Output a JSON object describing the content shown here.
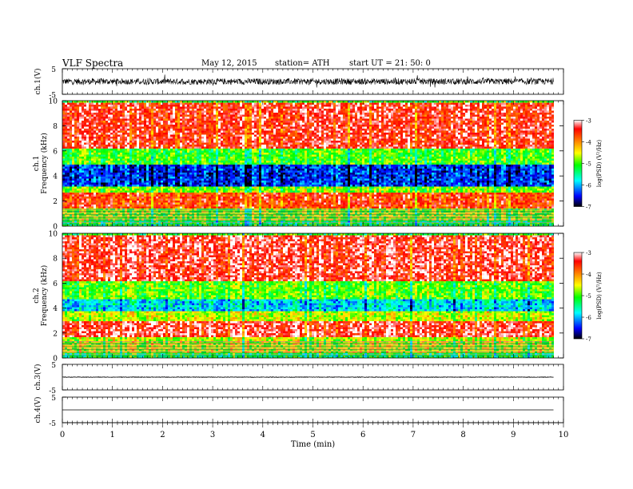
{
  "header": {
    "title": "VLF Spectra",
    "date": "May 12, 2015",
    "station": "station= ATH",
    "start": "start  UT =   21: 50: 0"
  },
  "colors": {
    "spectrogram_scale": [
      "#000000",
      "#0000ff",
      "#00ffff",
      "#00ff00",
      "#ffff00",
      "#ff8000",
      "#ff0000",
      "#ffffff"
    ]
  },
  "chart_data": [
    {
      "type": "line",
      "panel": "ch1-waveform",
      "ylabel": "ch.1(V)",
      "ylim": [
        -5,
        5
      ],
      "yticks": [
        "5",
        "-5"
      ],
      "baseline": 0,
      "amplitude": 1.2
    },
    {
      "type": "heatmap",
      "panel": "ch1-spectrogram",
      "ylabel_channel": "ch.1",
      "ylabel": "Frequency (kHz)",
      "ylim": [
        0,
        10
      ],
      "yticks": [
        "0",
        "2",
        "4",
        "6",
        "8",
        "10"
      ],
      "colorbar": {
        "label": "log(PSD) (V²/Hz)",
        "ticks": [
          "-3",
          "-4",
          "-5",
          "-6",
          "-7"
        ],
        "range": [
          -7,
          -3
        ]
      },
      "bands": [
        {
          "fmin": 0.0,
          "fmax": 0.5,
          "level": -5.2
        },
        {
          "fmin": 0.5,
          "fmax": 1.5,
          "level": -4.8
        },
        {
          "fmin": 1.5,
          "fmax": 2.8,
          "level": -3.6
        },
        {
          "fmin": 2.8,
          "fmax": 3.3,
          "level": -4.8
        },
        {
          "fmin": 3.3,
          "fmax": 5.0,
          "level": -6.4
        },
        {
          "fmin": 5.0,
          "fmax": 6.3,
          "level": -5.0
        },
        {
          "fmin": 6.3,
          "fmax": 10.0,
          "level": -3.4
        }
      ]
    },
    {
      "type": "heatmap",
      "panel": "ch2-spectrogram",
      "ylabel_channel": "ch.2",
      "ylabel": "Frequency (kHz)",
      "ylim": [
        0,
        10
      ],
      "yticks": [
        "0",
        "2",
        "4",
        "6",
        "8",
        "10"
      ],
      "colorbar": {
        "label": "log(PSD) (V²/Hz)",
        "ticks": [
          "-3",
          "-4",
          "-5",
          "-6",
          "-7"
        ],
        "range": [
          -7,
          -3
        ]
      },
      "bands": [
        {
          "fmin": 0.0,
          "fmax": 0.5,
          "level": -5.2
        },
        {
          "fmin": 0.5,
          "fmax": 1.8,
          "level": -4.6
        },
        {
          "fmin": 1.8,
          "fmax": 3.0,
          "level": -3.3
        },
        {
          "fmin": 3.0,
          "fmax": 3.8,
          "level": -4.6
        },
        {
          "fmin": 3.8,
          "fmax": 4.8,
          "level": -5.8
        },
        {
          "fmin": 4.8,
          "fmax": 6.3,
          "level": -4.9
        },
        {
          "fmin": 6.3,
          "fmax": 10.0,
          "level": -3.3
        }
      ]
    },
    {
      "type": "line",
      "panel": "ch3-waveform",
      "ylabel": "ch.3(V)",
      "ylim": [
        -5,
        5
      ],
      "yticks": [
        "5",
        "-5"
      ],
      "baseline": 0,
      "amplitude": 0.1
    },
    {
      "type": "line",
      "panel": "ch4-waveform",
      "ylabel": "ch.4(V)",
      "ylim": [
        -5,
        5
      ],
      "yticks": [
        "5",
        "-5"
      ],
      "baseline": 0,
      "amplitude": 0
    }
  ],
  "xaxis": {
    "label": "Time (min)",
    "xlim": [
      0,
      10
    ],
    "ticks": [
      "0",
      "1",
      "2",
      "3",
      "4",
      "5",
      "6",
      "7",
      "8",
      "9",
      "10"
    ],
    "data_end": 9.8
  }
}
